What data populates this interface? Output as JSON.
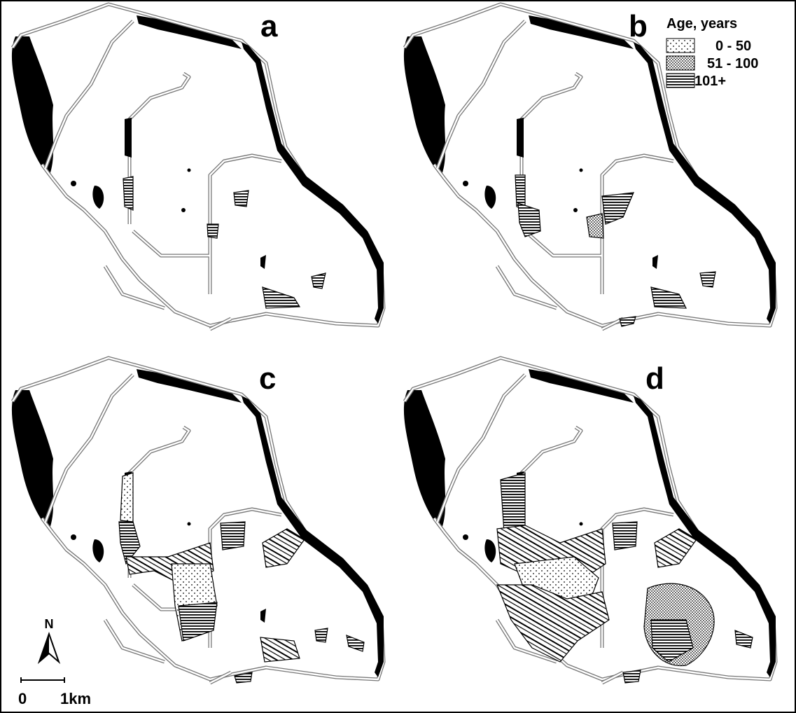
{
  "panels": [
    {
      "label": "a"
    },
    {
      "label": "b"
    },
    {
      "label": "c"
    },
    {
      "label": "d"
    }
  ],
  "legend": {
    "title": "Age, years",
    "items": [
      "0 - 50",
      "51 - 100",
      "101+"
    ]
  },
  "north": "N",
  "scale": {
    "start": "0",
    "end": "1km"
  }
}
